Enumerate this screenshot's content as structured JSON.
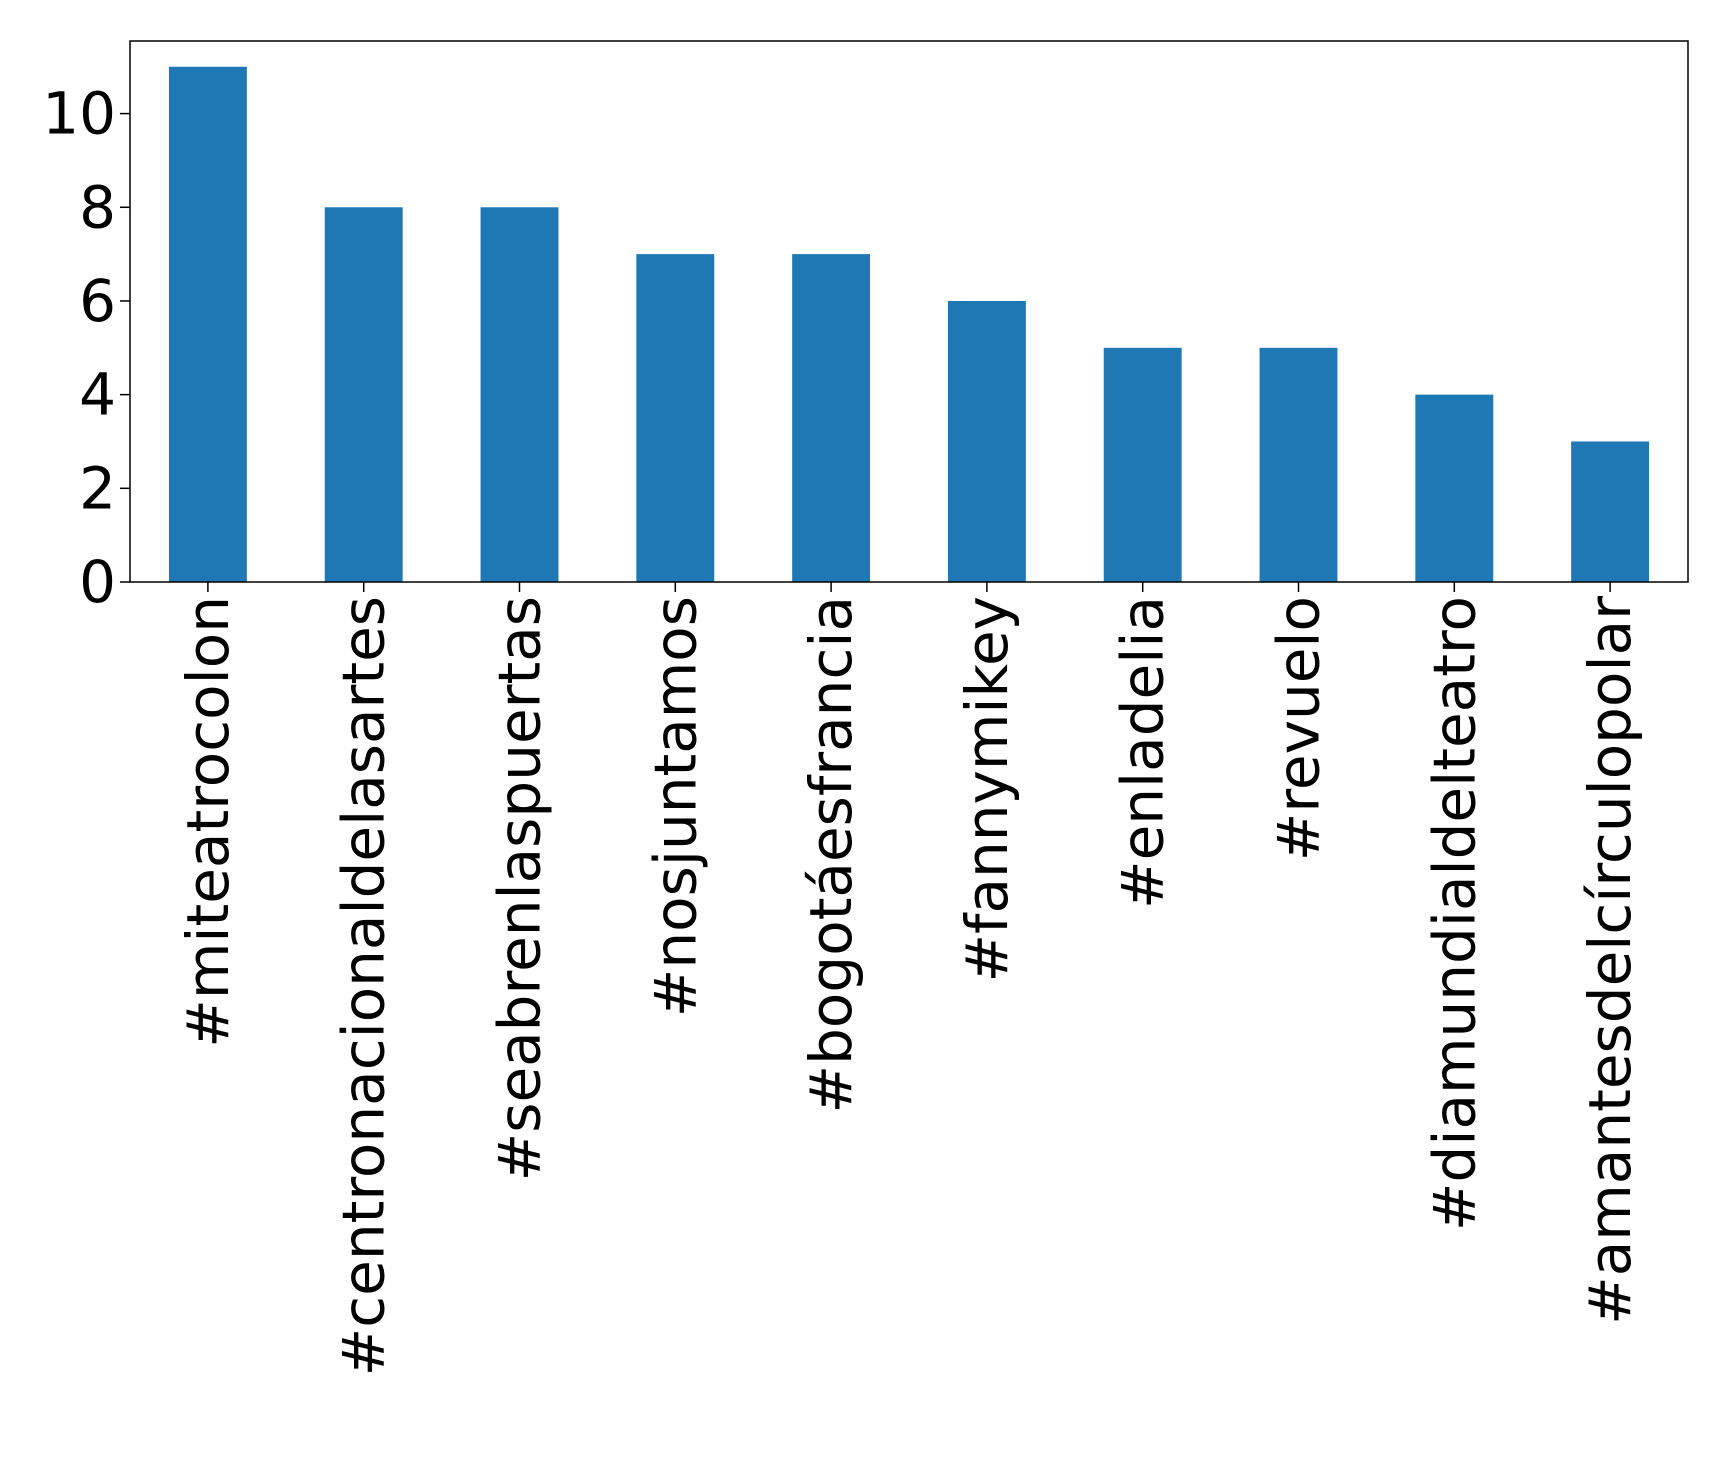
{
  "chart_data": {
    "type": "bar",
    "title": "",
    "xlabel": "",
    "ylabel": "",
    "categories": [
      "#miteatrocolon",
      "#centronacionaldelasartes",
      "#seabrenlaspuertas",
      "#nosjuntamos",
      "#bogotáesfrancia",
      "#fannymikey",
      "#enladelia",
      "#revuelo",
      "#diamundialdelteatro",
      "#amantesdelcírculopolar"
    ],
    "values": [
      11,
      8,
      8,
      7,
      7,
      6,
      5,
      5,
      4,
      3
    ],
    "ylim": [
      0,
      11.55
    ],
    "yticks": [
      0,
      2,
      4,
      6,
      8,
      10
    ],
    "grid": false,
    "bar_color": "#1f77b4"
  }
}
